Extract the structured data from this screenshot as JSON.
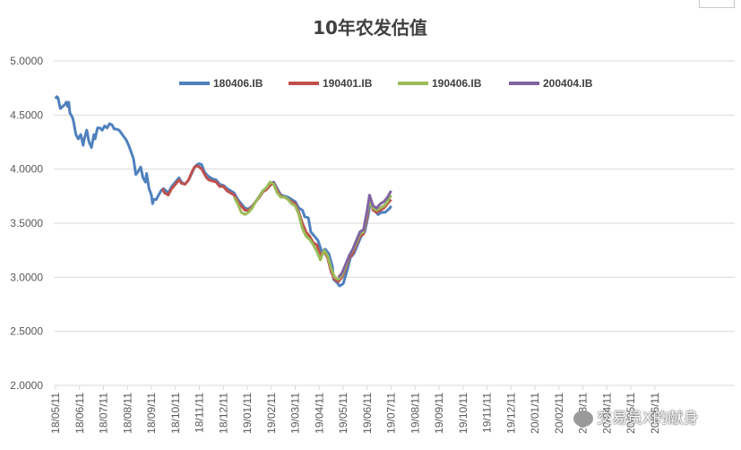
{
  "chart_data": {
    "type": "line",
    "title": "10年农发估值",
    "ylim": [
      2.0,
      5.0
    ],
    "y_ticks": [
      "5.0000",
      "4.5000",
      "4.0000",
      "3.5000",
      "3.0000",
      "2.5000",
      "2.0000"
    ],
    "x_ticks": [
      "18/05/11",
      "18/06/11",
      "18/07/11",
      "18/08/11",
      "18/09/11",
      "18/10/11",
      "18/11/11",
      "18/12/11",
      "19/01/11",
      "19/02/11",
      "19/03/11",
      "19/04/11",
      "19/05/11",
      "19/06/11",
      "19/07/11",
      "19/08/11",
      "19/09/11",
      "19/10/11",
      "19/11/11",
      "19/12/11",
      "20/01/11",
      "20/02/11",
      "20/03/11",
      "20/04/11",
      "20/05/11",
      "20/06/11"
    ],
    "grid": "horizontal",
    "legend_position": "top",
    "series": [
      {
        "name": "180406.IB",
        "color": "#4f81bd",
        "points": [
          [
            0,
            4.65
          ],
          [
            0.05,
            4.67
          ],
          [
            0.1,
            4.66
          ],
          [
            0.2,
            4.56
          ],
          [
            0.3,
            4.58
          ],
          [
            0.4,
            4.6
          ],
          [
            0.45,
            4.62
          ],
          [
            0.5,
            4.58
          ],
          [
            0.55,
            4.62
          ],
          [
            0.6,
            4.52
          ],
          [
            0.7,
            4.48
          ],
          [
            0.75,
            4.44
          ],
          [
            0.85,
            4.32
          ],
          [
            0.95,
            4.28
          ],
          [
            1.05,
            4.32
          ],
          [
            1.15,
            4.22
          ],
          [
            1.2,
            4.28
          ],
          [
            1.3,
            4.36
          ],
          [
            1.4,
            4.25
          ],
          [
            1.5,
            4.2
          ],
          [
            1.6,
            4.32
          ],
          [
            1.65,
            4.28
          ],
          [
            1.75,
            4.38
          ],
          [
            1.85,
            4.38
          ],
          [
            1.95,
            4.36
          ],
          [
            2.05,
            4.4
          ],
          [
            2.15,
            4.38
          ],
          [
            2.25,
            4.42
          ],
          [
            2.35,
            4.41
          ],
          [
            2.45,
            4.37
          ],
          [
            2.55,
            4.37
          ],
          [
            2.65,
            4.36
          ],
          [
            2.75,
            4.33
          ],
          [
            2.85,
            4.3
          ],
          [
            2.95,
            4.27
          ],
          [
            3.05,
            4.22
          ],
          [
            3.15,
            4.16
          ],
          [
            3.25,
            4.1
          ],
          [
            3.35,
            3.95
          ],
          [
            3.45,
            3.98
          ],
          [
            3.55,
            4.02
          ],
          [
            3.65,
            3.92
          ],
          [
            3.75,
            3.88
          ],
          [
            3.8,
            3.96
          ],
          [
            3.9,
            3.82
          ],
          [
            4.0,
            3.76
          ],
          [
            4.05,
            3.68
          ],
          [
            4.1,
            3.72
          ],
          [
            4.2,
            3.72
          ],
          [
            4.3,
            3.76
          ],
          [
            4.4,
            3.8
          ],
          [
            4.5,
            3.82
          ],
          [
            4.6,
            3.8
          ],
          [
            4.7,
            3.78
          ],
          [
            4.85,
            3.84
          ],
          [
            5.0,
            3.88
          ],
          [
            5.15,
            3.92
          ],
          [
            5.25,
            3.88
          ],
          [
            5.4,
            3.86
          ],
          [
            5.55,
            3.9
          ],
          [
            5.7,
            3.97
          ],
          [
            5.8,
            4.02
          ],
          [
            5.9,
            4.04
          ],
          [
            6.0,
            4.05
          ],
          [
            6.1,
            4.04
          ],
          [
            6.2,
            3.98
          ],
          [
            6.3,
            3.95
          ],
          [
            6.4,
            3.93
          ],
          [
            6.55,
            3.91
          ],
          [
            6.7,
            3.9
          ],
          [
            6.85,
            3.86
          ],
          [
            7.0,
            3.85
          ],
          [
            7.15,
            3.82
          ],
          [
            7.3,
            3.8
          ],
          [
            7.45,
            3.78
          ],
          [
            7.6,
            3.72
          ],
          [
            7.75,
            3.68
          ],
          [
            7.9,
            3.64
          ],
          [
            8.05,
            3.63
          ],
          [
            8.2,
            3.66
          ],
          [
            8.35,
            3.7
          ],
          [
            8.5,
            3.75
          ],
          [
            8.65,
            3.8
          ],
          [
            8.8,
            3.82
          ],
          [
            8.95,
            3.86
          ],
          [
            9.1,
            3.88
          ],
          [
            9.25,
            3.82
          ],
          [
            9.4,
            3.76
          ],
          [
            9.55,
            3.75
          ],
          [
            9.7,
            3.74
          ],
          [
            9.85,
            3.72
          ],
          [
            10.0,
            3.7
          ],
          [
            10.15,
            3.64
          ],
          [
            10.3,
            3.62
          ],
          [
            10.4,
            3.56
          ],
          [
            10.55,
            3.55
          ],
          [
            10.65,
            3.42
          ],
          [
            10.8,
            3.38
          ],
          [
            10.95,
            3.34
          ],
          [
            11.1,
            3.24
          ],
          [
            11.25,
            3.26
          ],
          [
            11.4,
            3.22
          ],
          [
            11.55,
            3.1
          ],
          [
            11.6,
            2.98
          ],
          [
            11.75,
            2.95
          ],
          [
            11.85,
            2.92
          ],
          [
            12.0,
            2.94
          ],
          [
            12.15,
            3.05
          ],
          [
            12.3,
            3.18
          ],
          [
            12.45,
            3.22
          ],
          [
            12.6,
            3.3
          ],
          [
            12.75,
            3.38
          ],
          [
            12.9,
            3.42
          ],
          [
            13.05,
            3.58
          ],
          [
            13.15,
            3.72
          ],
          [
            13.3,
            3.62
          ],
          [
            13.45,
            3.58
          ],
          [
            13.6,
            3.6
          ],
          [
            13.75,
            3.6
          ],
          [
            13.85,
            3.62
          ],
          [
            13.95,
            3.64
          ],
          [
            14.0,
            3.66
          ]
        ]
      },
      {
        "name": "190401.IB",
        "color": "#c0504d",
        "points": [
          [
            4.45,
            3.82
          ],
          [
            4.55,
            3.78
          ],
          [
            4.7,
            3.76
          ],
          [
            4.85,
            3.82
          ],
          [
            5.0,
            3.86
          ],
          [
            5.15,
            3.9
          ],
          [
            5.25,
            3.87
          ],
          [
            5.4,
            3.86
          ],
          [
            5.55,
            3.9
          ],
          [
            5.7,
            3.98
          ],
          [
            5.8,
            4.02
          ],
          [
            5.9,
            4.03
          ],
          [
            6.0,
            4.02
          ],
          [
            6.1,
            4.0
          ],
          [
            6.2,
            3.96
          ],
          [
            6.3,
            3.92
          ],
          [
            6.4,
            3.9
          ],
          [
            6.55,
            3.89
          ],
          [
            6.7,
            3.88
          ],
          [
            6.85,
            3.84
          ],
          [
            7.0,
            3.84
          ],
          [
            7.15,
            3.8
          ],
          [
            7.3,
            3.78
          ],
          [
            7.45,
            3.76
          ],
          [
            7.6,
            3.7
          ],
          [
            7.75,
            3.66
          ],
          [
            7.9,
            3.62
          ],
          [
            8.05,
            3.62
          ],
          [
            8.2,
            3.65
          ],
          [
            8.35,
            3.7
          ],
          [
            8.5,
            3.74
          ],
          [
            8.65,
            3.79
          ],
          [
            8.8,
            3.81
          ],
          [
            8.95,
            3.85
          ],
          [
            9.1,
            3.87
          ],
          [
            9.25,
            3.8
          ],
          [
            9.4,
            3.75
          ],
          [
            9.55,
            3.74
          ],
          [
            9.7,
            3.72
          ],
          [
            9.85,
            3.7
          ],
          [
            10.0,
            3.68
          ],
          [
            10.15,
            3.6
          ],
          [
            10.3,
            3.5
          ],
          [
            10.45,
            3.42
          ],
          [
            10.6,
            3.38
          ],
          [
            10.75,
            3.32
          ],
          [
            10.9,
            3.3
          ],
          [
            11.05,
            3.2
          ],
          [
            11.2,
            3.24
          ],
          [
            11.35,
            3.18
          ],
          [
            11.5,
            3.05
          ],
          [
            11.65,
            2.98
          ],
          [
            11.8,
            2.96
          ],
          [
            11.95,
            3.0
          ],
          [
            12.1,
            3.08
          ],
          [
            12.25,
            3.18
          ],
          [
            12.4,
            3.22
          ],
          [
            12.55,
            3.3
          ],
          [
            12.7,
            3.38
          ],
          [
            12.85,
            3.4
          ],
          [
            13.0,
            3.56
          ],
          [
            13.1,
            3.74
          ],
          [
            13.25,
            3.62
          ],
          [
            13.4,
            3.6
          ],
          [
            13.55,
            3.62
          ],
          [
            13.7,
            3.64
          ],
          [
            13.85,
            3.68
          ],
          [
            14.0,
            3.72
          ]
        ]
      },
      {
        "name": "190406.IB",
        "color": "#9bbb59",
        "points": [
          [
            7.45,
            3.74
          ],
          [
            7.6,
            3.68
          ],
          [
            7.75,
            3.6
          ],
          [
            7.9,
            3.58
          ],
          [
            8.05,
            3.6
          ],
          [
            8.2,
            3.64
          ],
          [
            8.35,
            3.7
          ],
          [
            8.5,
            3.75
          ],
          [
            8.65,
            3.8
          ],
          [
            8.8,
            3.83
          ],
          [
            8.95,
            3.88
          ],
          [
            9.1,
            3.86
          ],
          [
            9.25,
            3.78
          ],
          [
            9.4,
            3.74
          ],
          [
            9.55,
            3.74
          ],
          [
            9.7,
            3.72
          ],
          [
            9.85,
            3.68
          ],
          [
            10.0,
            3.66
          ],
          [
            10.15,
            3.58
          ],
          [
            10.3,
            3.45
          ],
          [
            10.45,
            3.38
          ],
          [
            10.6,
            3.35
          ],
          [
            10.75,
            3.3
          ],
          [
            10.9,
            3.24
          ],
          [
            11.05,
            3.16
          ],
          [
            11.2,
            3.25
          ],
          [
            11.35,
            3.2
          ],
          [
            11.5,
            3.08
          ],
          [
            11.65,
            3.0
          ],
          [
            11.8,
            2.98
          ],
          [
            11.95,
            3.02
          ],
          [
            12.1,
            3.1
          ],
          [
            12.25,
            3.2
          ],
          [
            12.4,
            3.25
          ],
          [
            12.55,
            3.32
          ],
          [
            12.7,
            3.4
          ],
          [
            12.85,
            3.42
          ],
          [
            13.0,
            3.6
          ],
          [
            13.1,
            3.7
          ],
          [
            13.25,
            3.64
          ],
          [
            13.4,
            3.62
          ],
          [
            13.55,
            3.64
          ],
          [
            13.7,
            3.66
          ],
          [
            13.85,
            3.7
          ],
          [
            14.0,
            3.76
          ]
        ]
      },
      {
        "name": "200404.IB",
        "color": "#8064a2",
        "points": [
          [
            11.8,
            3.0
          ],
          [
            11.95,
            3.04
          ],
          [
            12.1,
            3.12
          ],
          [
            12.25,
            3.2
          ],
          [
            12.4,
            3.26
          ],
          [
            12.55,
            3.34
          ],
          [
            12.7,
            3.42
          ],
          [
            12.85,
            3.44
          ],
          [
            13.0,
            3.62
          ],
          [
            13.1,
            3.76
          ],
          [
            13.25,
            3.66
          ],
          [
            13.4,
            3.64
          ],
          [
            13.55,
            3.68
          ],
          [
            13.7,
            3.7
          ],
          [
            13.85,
            3.74
          ],
          [
            14.0,
            3.8
          ]
        ]
      }
    ]
  },
  "watermark": "交易员X的献身"
}
